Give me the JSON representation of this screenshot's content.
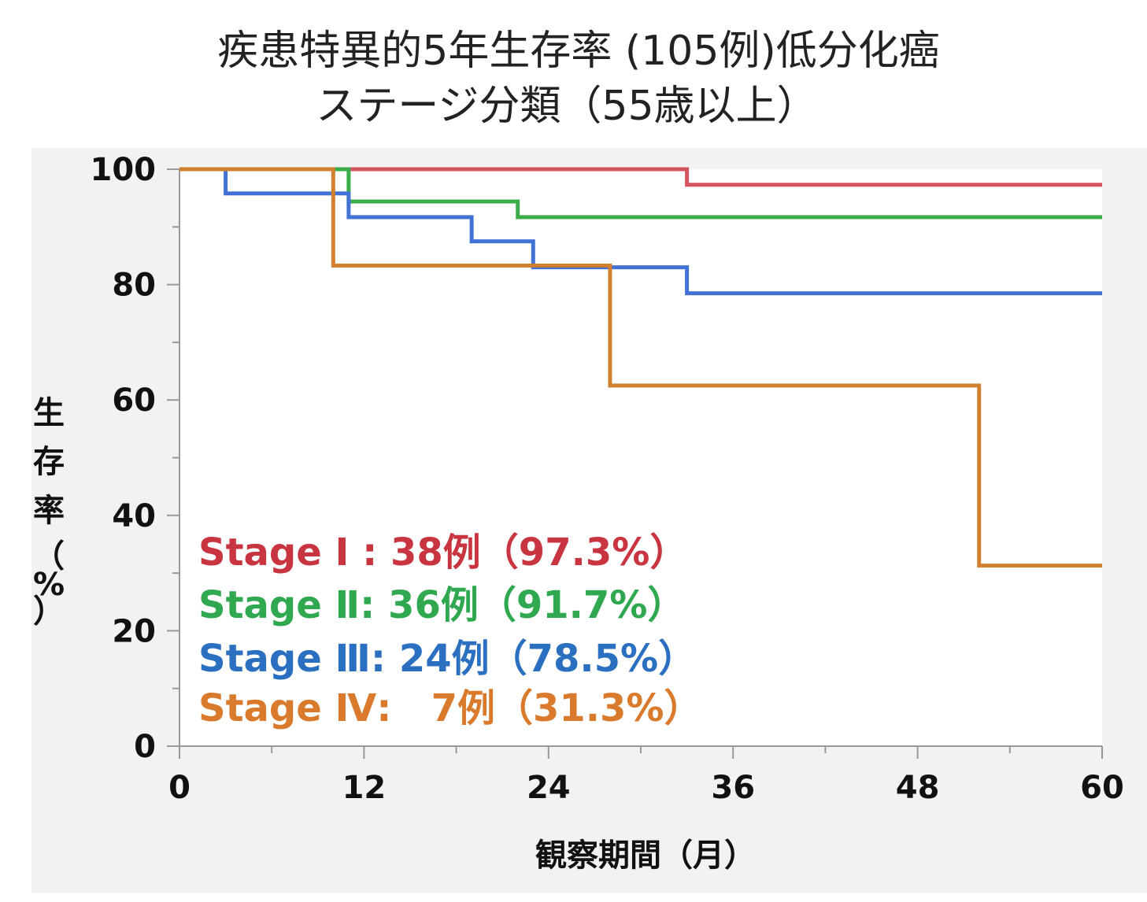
{
  "chart_data": {
    "type": "line",
    "step": true,
    "title_line1": "疾患特異的5年生存率 (105例)低分化癌",
    "title_line2": "ステージ分類（55歳以上）",
    "xlabel": "観察期間（月）",
    "ylabel_chars": [
      "生",
      "存",
      "率",
      "（",
      "%",
      "）"
    ],
    "xlim": [
      0,
      60
    ],
    "ylim": [
      0,
      100
    ],
    "x_ticks": [
      0,
      12,
      24,
      36,
      48,
      60
    ],
    "y_ticks": [
      0,
      20,
      40,
      60,
      80,
      100
    ],
    "x_tick_labels": [
      "0",
      "12",
      "24",
      "36",
      "48",
      "60"
    ],
    "y_tick_labels": [
      "0",
      "20",
      "40",
      "60",
      "80",
      "100"
    ],
    "grid": false,
    "legend_position": "bottom-left",
    "series": [
      {
        "name": "Stage Ⅰ",
        "legend_label": "Stage Ⅰ : 38例（97.3%）",
        "color": "#c8343f",
        "line_color": "#d45460",
        "x": [
          0,
          33,
          60
        ],
        "y": [
          100,
          97.3,
          97.3
        ]
      },
      {
        "name": "Stage Ⅱ",
        "legend_label": "Stage Ⅱ: 36例（91.7%）",
        "color": "#2fa84f",
        "line_color": "#3aac48",
        "x": [
          0,
          11,
          22,
          60
        ],
        "y": [
          100,
          94.4,
          91.7,
          91.7
        ]
      },
      {
        "name": "Stage Ⅲ",
        "legend_label": "Stage Ⅲ: 24例（78.5%）",
        "color": "#2a6fc0",
        "line_color": "#4272d6",
        "x": [
          0,
          3,
          11,
          19,
          23,
          33,
          60
        ],
        "y": [
          100,
          95.8,
          91.7,
          87.5,
          83.0,
          78.5,
          78.5
        ]
      },
      {
        "name": "Stage Ⅳ",
        "legend_label": "Stage Ⅳ:   7例（31.3%）",
        "color": "#d97a2c",
        "line_color": "#d0802e",
        "x": [
          0,
          10,
          28,
          52,
          60
        ],
        "y": [
          100,
          83.3,
          62.5,
          31.3,
          31.3
        ]
      }
    ]
  }
}
